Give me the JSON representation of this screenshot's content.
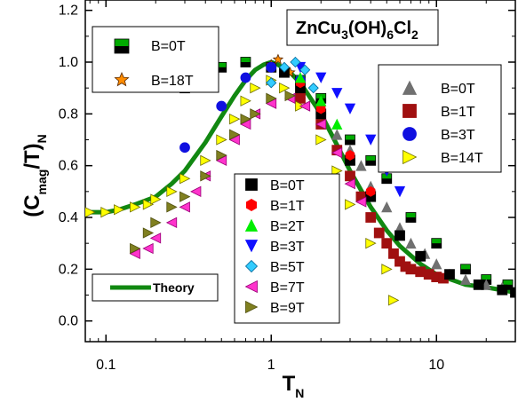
{
  "chart_data": {
    "type": "scatter",
    "title": {
      "parts": [
        "ZnCu",
        "3",
        "(OH)",
        "6",
        "Cl",
        "2"
      ]
    },
    "xlabel": {
      "main": "T",
      "sub": "N"
    },
    "ylabel": {
      "open": "(C",
      "sub": "mag",
      "mid": "/T)",
      "sub2": "N"
    },
    "xscale": "log",
    "xlim": [
      0.075,
      30
    ],
    "ylim": [
      -0.08,
      1.24
    ],
    "xticks": [
      {
        "v": 0.1,
        "label": "0.1"
      },
      {
        "v": 1,
        "label": "1"
      },
      {
        "v": 10,
        "label": "10"
      }
    ],
    "yticks": [
      {
        "v": 0.0,
        "label": "0.0"
      },
      {
        "v": 0.2,
        "label": "0.2"
      },
      {
        "v": 0.4,
        "label": "0.4"
      },
      {
        "v": 0.6,
        "label": "0.6"
      },
      {
        "v": 0.8,
        "label": "0.8"
      },
      {
        "v": 1.0,
        "label": "1.0"
      },
      {
        "v": 1.2,
        "label": "1.2"
      }
    ],
    "grid": false,
    "series": [
      {
        "name": "B=0T",
        "legend": "top-left",
        "marker": "square",
        "color": "#00aa00",
        "stroke": "#000000",
        "twotone": "#000000",
        "x": [
          0.3,
          0.5,
          0.7,
          1.0,
          1.5,
          2.0,
          3.0,
          4.0,
          5.0,
          7.0,
          10.0,
          15.0,
          20.0,
          27.0
        ],
        "y": [
          0.9,
          0.98,
          1.0,
          0.98,
          0.93,
          0.86,
          0.7,
          0.62,
          0.55,
          0.4,
          0.3,
          0.2,
          0.16,
          0.14
        ]
      },
      {
        "name": "B=18T",
        "legend": "top-left",
        "marker": "star",
        "color": "#ff8c00",
        "stroke": "#5a2a00",
        "x": [
          1.0,
          1.1,
          1.3
        ],
        "y": [
          0.99,
          1.01,
          0.96
        ]
      },
      {
        "name": "B=0T",
        "legend": "right-top",
        "marker": "triangle-up",
        "color": "#707070",
        "stroke": "#707070",
        "x": [
          1.5,
          2.0,
          2.5,
          3.0,
          3.5,
          4.0,
          5.0,
          6.0,
          7.0,
          8.5,
          10.0,
          12.0,
          15.0,
          20.0,
          25.0
        ],
        "y": [
          0.88,
          0.82,
          0.72,
          0.66,
          0.6,
          0.52,
          0.44,
          0.36,
          0.3,
          0.26,
          0.22,
          0.18,
          0.16,
          0.14,
          0.13
        ]
      },
      {
        "name": "B=1T",
        "legend": "right-top",
        "marker": "square",
        "color": "#a01010",
        "stroke": "#a01010",
        "x": [
          1.5,
          2.0,
          2.5,
          3.0,
          3.5,
          4.0,
          4.5,
          5.0,
          5.5,
          6.0,
          6.5,
          7.0,
          8.0,
          9.0,
          10.0,
          11.0
        ],
        "y": [
          0.86,
          0.76,
          0.66,
          0.56,
          0.48,
          0.4,
          0.34,
          0.3,
          0.26,
          0.23,
          0.21,
          0.2,
          0.19,
          0.18,
          0.17,
          0.165
        ]
      },
      {
        "name": "B=3T",
        "legend": "right-top",
        "marker": "circle",
        "color": "#1010e0",
        "stroke": "#1010e0",
        "x": [
          0.3,
          0.5,
          0.7,
          1.0,
          1.5
        ],
        "y": [
          0.67,
          0.83,
          0.94,
          0.98,
          0.93
        ]
      },
      {
        "name": "B=14T",
        "legend": "right-top",
        "marker": "triangle-right",
        "color": "#ffff00",
        "stroke": "#707000",
        "x": [
          0.08,
          0.1,
          0.12,
          0.15,
          0.18,
          0.2,
          0.25,
          0.3,
          0.4,
          0.5,
          0.6,
          0.7,
          0.8,
          1.0,
          1.2,
          1.5,
          2.0,
          2.5,
          3.0,
          4.0,
          5.0,
          5.5
        ],
        "y": [
          0.42,
          0.42,
          0.43,
          0.44,
          0.45,
          0.47,
          0.5,
          0.55,
          0.62,
          0.7,
          0.78,
          0.85,
          0.9,
          0.93,
          0.9,
          0.83,
          0.7,
          0.58,
          0.45,
          0.3,
          0.2,
          0.08
        ]
      },
      {
        "name": "B=0T",
        "legend": "center",
        "marker": "square",
        "color": "#000000",
        "stroke": "#000000",
        "x": [
          1.2,
          1.5,
          2.0,
          3.0,
          4.0,
          6.0,
          8.0,
          12.0,
          18.0,
          25.0,
          30.0
        ],
        "y": [
          0.96,
          0.9,
          0.8,
          0.62,
          0.48,
          0.33,
          0.25,
          0.18,
          0.14,
          0.12,
          0.11
        ]
      },
      {
        "name": "B=1T",
        "legend": "center",
        "marker": "hexagon",
        "color": "#ff0000",
        "stroke": "#ff0000",
        "x": [
          1.5,
          2.0,
          3.0,
          4.0
        ],
        "y": [
          0.92,
          0.82,
          0.64,
          0.5
        ]
      },
      {
        "name": "B=2T",
        "legend": "center",
        "marker": "triangle-up",
        "color": "#00ee00",
        "stroke": "#00ee00",
        "x": [
          1.5,
          2.0,
          2.5
        ],
        "y": [
          0.94,
          0.85,
          0.76
        ]
      },
      {
        "name": "B=3T",
        "legend": "center",
        "marker": "triangle-down",
        "color": "#1010ff",
        "stroke": "#1010ff",
        "x": [
          1.5,
          2.0,
          2.5,
          3.0,
          4.0,
          5.0,
          6.0
        ],
        "y": [
          0.98,
          0.94,
          0.88,
          0.82,
          0.7,
          0.58,
          0.5
        ]
      },
      {
        "name": "B=5T",
        "legend": "center",
        "marker": "diamond",
        "color": "#33ccff",
        "stroke": "#006699",
        "x": [
          1.0,
          1.2,
          1.4,
          1.6,
          1.8
        ],
        "y": [
          0.92,
          0.98,
          1.0,
          0.97,
          0.9
        ]
      },
      {
        "name": "B=7T",
        "legend": "center",
        "marker": "triangle-left",
        "color": "#ff33cc",
        "stroke": "#990077",
        "x": [
          0.15,
          0.18,
          0.2,
          0.25,
          0.3,
          0.35,
          0.4,
          0.5,
          0.6,
          0.7,
          0.8,
          1.0,
          1.3,
          1.6,
          2.0,
          2.5,
          3.0,
          3.5
        ],
        "y": [
          0.26,
          0.28,
          0.32,
          0.38,
          0.44,
          0.5,
          0.56,
          0.62,
          0.7,
          0.76,
          0.8,
          0.84,
          0.86,
          0.83,
          0.76,
          0.65,
          0.53,
          0.46
        ]
      },
      {
        "name": "B=9T",
        "legend": "center",
        "marker": "triangle-right",
        "color": "#808020",
        "stroke": "#505010",
        "x": [
          0.15,
          0.18,
          0.2,
          0.25,
          0.3,
          0.4,
          0.5,
          0.6,
          0.7,
          0.8,
          1.0,
          1.3
        ],
        "y": [
          0.28,
          0.34,
          0.38,
          0.44,
          0.48,
          0.56,
          0.64,
          0.72,
          0.78,
          0.8,
          0.86,
          0.87
        ]
      },
      {
        "name": "Theory",
        "legend": "bottom-left",
        "marker": "line",
        "color": "#118811",
        "x": [
          0.075,
          0.1,
          0.12,
          0.15,
          0.2,
          0.25,
          0.3,
          0.4,
          0.5,
          0.6,
          0.7,
          0.8,
          0.9,
          1.0,
          1.1,
          1.3,
          1.5,
          2.0,
          2.5,
          3.0,
          4.0,
          5.0,
          6.0,
          8.0,
          10.0,
          15.0,
          20.0,
          30.0
        ],
        "y": [
          0.42,
          0.42,
          0.43,
          0.45,
          0.48,
          0.53,
          0.58,
          0.69,
          0.79,
          0.87,
          0.93,
          0.97,
          0.99,
          1.0,
          0.99,
          0.96,
          0.92,
          0.8,
          0.68,
          0.58,
          0.44,
          0.35,
          0.29,
          0.22,
          0.18,
          0.14,
          0.13,
          0.11
        ]
      }
    ]
  },
  "legends": {
    "top_left": [
      "B=0T",
      "B=18T"
    ],
    "right_top": [
      "B=0T",
      "B=1T",
      "B=3T",
      "B=14T"
    ],
    "center": [
      "B=0T",
      "B=1T",
      "B=2T",
      "B=3T",
      "B=5T",
      "B=7T",
      "B=9T"
    ],
    "bottom_left": [
      "Theory"
    ]
  }
}
